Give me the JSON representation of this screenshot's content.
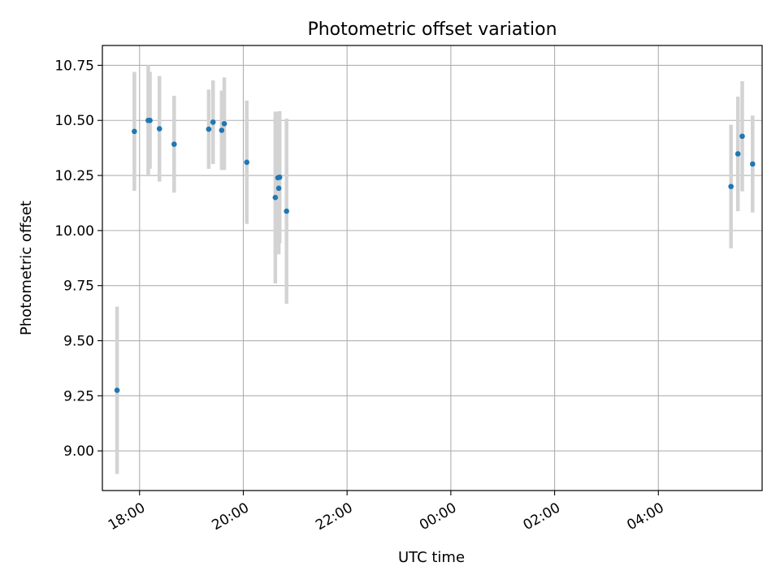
{
  "chart_data": {
    "type": "scatter",
    "title": "Photometric offset variation",
    "xlabel": "UTC time",
    "ylabel": "Photometric offset",
    "x_axis": {
      "kind": "time",
      "range": [
        "17:17",
        "06:00"
      ],
      "ticks": [
        "18:00",
        "20:00",
        "22:00",
        "00:00",
        "02:00",
        "04:00"
      ]
    },
    "y_axis": {
      "range": [
        8.82,
        10.84
      ],
      "ticks": [
        9.0,
        9.25,
        9.5,
        9.75,
        10.0,
        10.25,
        10.5,
        10.75
      ],
      "tick_labels": [
        "9.00",
        "9.25",
        "9.50",
        "9.75",
        "10.00",
        "10.25",
        "10.50",
        "10.75"
      ]
    },
    "grid": true,
    "legend": "none",
    "colors": {
      "points": "#1f77b4",
      "errorbars": "#d3d3d3",
      "grid": "#b0b0b0"
    },
    "series": [
      {
        "points": [
          {
            "x": "17:34",
            "y": 9.275,
            "yerr": 0.38
          },
          {
            "x": "17:54",
            "y": 10.45,
            "yerr": 0.27
          },
          {
            "x": "18:10",
            "y": 10.5,
            "yerr": 0.25
          },
          {
            "x": "18:12",
            "y": 10.5,
            "yerr": 0.22
          },
          {
            "x": "18:23",
            "y": 10.462,
            "yerr": 0.24
          },
          {
            "x": "18:40",
            "y": 10.392,
            "yerr": 0.22
          },
          {
            "x": "19:20",
            "y": 10.46,
            "yerr": 0.18
          },
          {
            "x": "19:25",
            "y": 10.492,
            "yerr": 0.19
          },
          {
            "x": "19:35",
            "y": 10.455,
            "yerr": 0.18
          },
          {
            "x": "19:38",
            "y": 10.485,
            "yerr": 0.21
          },
          {
            "x": "20:04",
            "y": 10.31,
            "yerr": 0.28
          },
          {
            "x": "20:37",
            "y": 10.15,
            "yerr": 0.39
          },
          {
            "x": "20:40",
            "y": 10.24,
            "yerr": 0.3
          },
          {
            "x": "20:41",
            "y": 10.192,
            "yerr": 0.3
          },
          {
            "x": "20:42",
            "y": 10.242,
            "yerr": 0.3
          },
          {
            "x": "20:50",
            "y": 10.088,
            "yerr": 0.42
          },
          {
            "x": "05:24",
            "y": 10.2,
            "yerr": 0.28
          },
          {
            "x": "05:32",
            "y": 10.348,
            "yerr": 0.26
          },
          {
            "x": "05:37",
            "y": 10.428,
            "yerr": 0.25
          },
          {
            "x": "05:49",
            "y": 10.302,
            "yerr": 0.22
          }
        ]
      }
    ]
  }
}
